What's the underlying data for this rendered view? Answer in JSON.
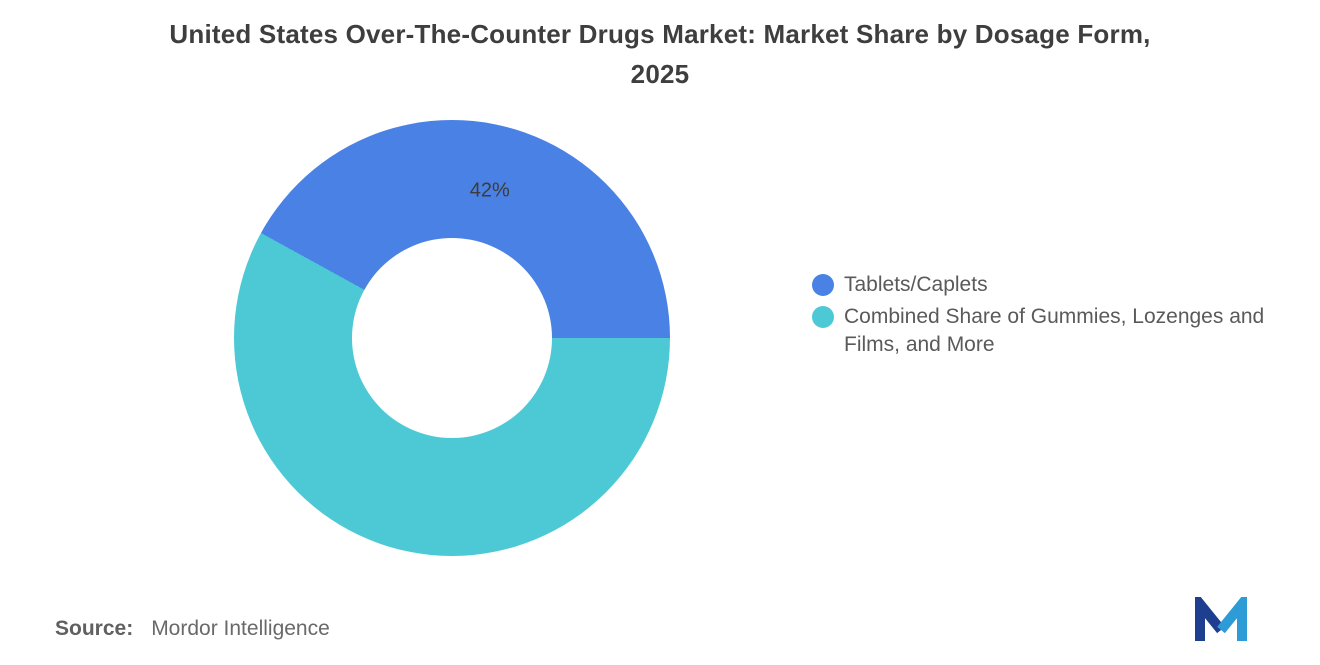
{
  "title": {
    "line1": "United States Over-The-Counter Drugs Market: Market Share by Dosage Form,",
    "line2": "2025"
  },
  "chart_data": {
    "type": "pie",
    "subtype": "donut",
    "title": "United States Over-The-Counter Drugs Market: Market Share by Dosage Form, 2025",
    "segments": [
      {
        "label": "Tablets/Caplets",
        "value": 42,
        "data_label": "42%",
        "color": "#4A81E4"
      },
      {
        "label": "Combined Share of Gummies, Lozenges and Films, and More",
        "value": 58,
        "data_label": "",
        "color": "#4DC9D6"
      }
    ],
    "start_angle_deg": 0,
    "direction": "counterclockwise",
    "legend_position": "right",
    "hole_color": "#FFFFFF"
  },
  "source": {
    "label": "Source:",
    "value": "Mordor Intelligence"
  },
  "logo_colors": {
    "dark": "#1E3E8F",
    "light": "#2D9BD5"
  }
}
